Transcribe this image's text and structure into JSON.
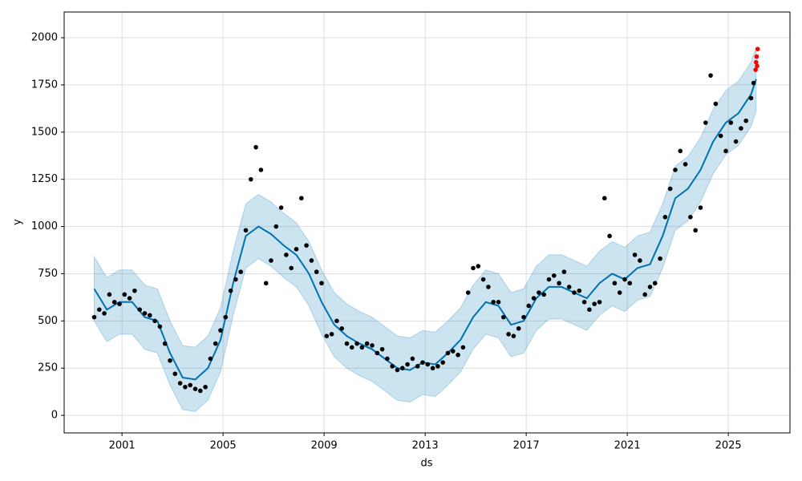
{
  "chart_data": {
    "type": "line",
    "x_label": "ds",
    "y_label": "y",
    "grid": true,
    "xlim": [
      1998.71,
      2027.44
    ],
    "ylim": [
      -93,
      2136
    ],
    "xticks": [
      2001,
      2005,
      2009,
      2013,
      2017,
      2021,
      2025
    ],
    "yticks": [
      0,
      250,
      500,
      750,
      1000,
      1250,
      1500,
      1750,
      2000
    ],
    "band": {
      "color": "#0072B2",
      "x": [
        1999.9,
        2000.4,
        2000.9,
        2001.4,
        2001.9,
        2002.4,
        2002.9,
        2003.4,
        2003.9,
        2004.4,
        2004.9,
        2005.4,
        2005.9,
        2006.4,
        2006.9,
        2007.4,
        2007.9,
        2008.4,
        2008.9,
        2009.4,
        2009.9,
        2010.4,
        2010.9,
        2011.4,
        2011.9,
        2012.4,
        2012.9,
        2013.4,
        2013.9,
        2014.4,
        2014.9,
        2015.4,
        2015.9,
        2016.4,
        2016.9,
        2017.4,
        2017.9,
        2018.4,
        2018.9,
        2019.4,
        2019.9,
        2020.4,
        2020.9,
        2021.4,
        2021.9,
        2022.4,
        2022.9,
        2023.4,
        2023.9,
        2024.4,
        2024.9,
        2025.4,
        2025.9,
        2026.1
      ],
      "lower": [
        500,
        390,
        430,
        430,
        350,
        330,
        160,
        30,
        20,
        80,
        230,
        530,
        780,
        830,
        790,
        730,
        680,
        580,
        430,
        310,
        250,
        210,
        180,
        130,
        80,
        70,
        110,
        100,
        160,
        230,
        350,
        430,
        410,
        310,
        330,
        450,
        510,
        510,
        480,
        450,
        530,
        580,
        550,
        610,
        630,
        780,
        980,
        1030,
        1130,
        1280,
        1380,
        1430,
        1530,
        1610
      ],
      "upper": [
        840,
        730,
        770,
        770,
        690,
        670,
        500,
        370,
        360,
        420,
        570,
        870,
        1120,
        1170,
        1130,
        1070,
        1020,
        920,
        770,
        650,
        590,
        550,
        520,
        470,
        420,
        410,
        450,
        440,
        500,
        570,
        690,
        770,
        750,
        650,
        670,
        790,
        850,
        850,
        820,
        790,
        870,
        920,
        890,
        950,
        970,
        1120,
        1320,
        1370,
        1470,
        1620,
        1720,
        1770,
        1870,
        1950
      ]
    },
    "series": [
      {
        "type": "line",
        "color": "#0072B2",
        "x": [
          1999.9,
          2000.4,
          2000.9,
          2001.4,
          2001.9,
          2002.4,
          2002.9,
          2003.4,
          2003.9,
          2004.4,
          2004.9,
          2005.4,
          2005.9,
          2006.4,
          2006.9,
          2007.4,
          2007.9,
          2008.4,
          2008.9,
          2009.4,
          2009.9,
          2010.4,
          2010.9,
          2011.4,
          2011.9,
          2012.4,
          2012.9,
          2013.4,
          2013.9,
          2014.4,
          2014.9,
          2015.4,
          2015.9,
          2016.4,
          2016.9,
          2017.4,
          2017.9,
          2018.4,
          2018.9,
          2019.4,
          2019.9,
          2020.4,
          2020.9,
          2021.4,
          2021.9,
          2022.4,
          2022.9,
          2023.4,
          2023.9,
          2024.4,
          2024.9,
          2025.4,
          2025.9,
          2026.1
        ],
        "values": [
          670,
          560,
          600,
          600,
          520,
          500,
          330,
          200,
          190,
          250,
          400,
          700,
          950,
          1000,
          960,
          900,
          850,
          750,
          600,
          480,
          420,
          380,
          350,
          300,
          250,
          240,
          280,
          270,
          330,
          400,
          520,
          600,
          580,
          480,
          500,
          620,
          680,
          680,
          650,
          620,
          700,
          750,
          720,
          780,
          800,
          950,
          1150,
          1200,
          1300,
          1450,
          1550,
          1600,
          1700,
          1780
        ]
      },
      {
        "type": "scatter",
        "color": "#000000",
        "x": [
          1999.9,
          2000.1,
          2000.3,
          2000.5,
          2000.7,
          2000.9,
          2001.1,
          2001.3,
          2001.5,
          2001.7,
          2001.9,
          2002.1,
          2002.3,
          2002.5,
          2002.7,
          2002.9,
          2003.1,
          2003.3,
          2003.5,
          2003.7,
          2003.9,
          2004.1,
          2004.3,
          2004.5,
          2004.7,
          2004.9,
          2005.1,
          2005.3,
          2005.5,
          2005.7,
          2005.9,
          2006.1,
          2006.3,
          2006.5,
          2006.7,
          2006.9,
          2007.1,
          2007.3,
          2007.5,
          2007.7,
          2007.9,
          2008.1,
          2008.3,
          2008.5,
          2008.7,
          2008.9,
          2009.1,
          2009.3,
          2009.5,
          2009.7,
          2009.9,
          2010.1,
          2010.3,
          2010.5,
          2010.7,
          2010.9,
          2011.1,
          2011.3,
          2011.5,
          2011.7,
          2011.9,
          2012.1,
          2012.3,
          2012.5,
          2012.7,
          2012.9,
          2013.1,
          2013.3,
          2013.5,
          2013.7,
          2013.9,
          2014.1,
          2014.3,
          2014.5,
          2014.7,
          2014.9,
          2015.1,
          2015.3,
          2015.5,
          2015.7,
          2015.9,
          2016.1,
          2016.3,
          2016.5,
          2016.7,
          2016.9,
          2017.1,
          2017.3,
          2017.5,
          2017.7,
          2017.9,
          2018.1,
          2018.3,
          2018.5,
          2018.7,
          2018.9,
          2019.1,
          2019.3,
          2019.5,
          2019.7,
          2019.9,
          2020.1,
          2020.3,
          2020.5,
          2020.7,
          2020.9,
          2021.1,
          2021.3,
          2021.5,
          2021.7,
          2021.9,
          2022.1,
          2022.3,
          2022.5,
          2022.7,
          2022.9,
          2023.1,
          2023.3,
          2023.5,
          2023.7,
          2023.9,
          2024.1,
          2024.3,
          2024.5,
          2024.7,
          2024.9,
          2025.1,
          2025.3,
          2025.5,
          2025.7,
          2025.9,
          2026.0
        ],
        "values": [
          520,
          560,
          540,
          640,
          600,
          590,
          640,
          620,
          660,
          560,
          540,
          530,
          500,
          470,
          380,
          290,
          220,
          170,
          150,
          160,
          140,
          130,
          150,
          300,
          380,
          450,
          520,
          660,
          720,
          760,
          980,
          1250,
          1420,
          1300,
          700,
          820,
          1000,
          1100,
          850,
          780,
          880,
          1150,
          900,
          820,
          760,
          700,
          420,
          430,
          500,
          460,
          380,
          360,
          380,
          360,
          380,
          370,
          330,
          350,
          300,
          260,
          240,
          250,
          270,
          300,
          260,
          280,
          270,
          250,
          260,
          280,
          330,
          340,
          320,
          360,
          650,
          780,
          790,
          720,
          680,
          600,
          600,
          520,
          430,
          420,
          460,
          520,
          580,
          620,
          650,
          640,
          720,
          740,
          700,
          760,
          680,
          650,
          660,
          600,
          560,
          590,
          600,
          1150,
          950,
          700,
          650,
          720,
          700,
          850,
          820,
          640,
          680,
          700,
          830,
          1050,
          1200,
          1300,
          1400,
          1330,
          1050,
          980,
          1100,
          1550,
          1800,
          1650,
          1480,
          1400,
          1550,
          1450,
          1520,
          1560,
          1680,
          1760
        ]
      },
      {
        "type": "scatter",
        "color": "#ff0000",
        "x": [
          2026.08,
          2026.1,
          2026.12,
          2026.14,
          2026.16
        ],
        "values": [
          1830,
          1870,
          1900,
          1850,
          1940
        ]
      }
    ]
  }
}
